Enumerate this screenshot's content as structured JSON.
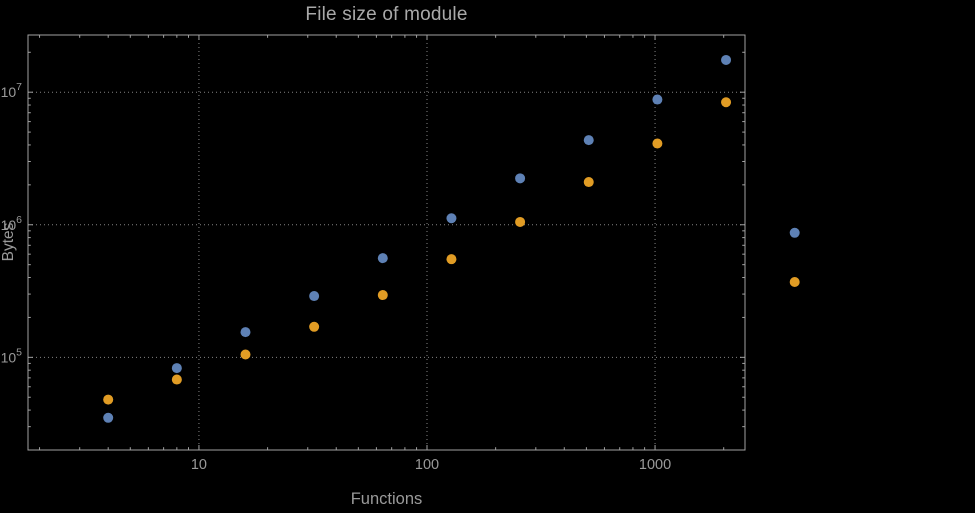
{
  "chart_data": {
    "type": "scatter",
    "title": "File size of module",
    "xlabel": "Functions",
    "ylabel": "Bytes",
    "x_scale": "log",
    "y_scale": "log",
    "xlim": [
      1.78,
      2480
    ],
    "ylim": [
      20000,
      27000000
    ],
    "grid": true,
    "legend": "none",
    "x_gridlines": [
      10,
      100,
      1000
    ],
    "y_gridlines": [
      100000,
      1000000,
      10000000
    ],
    "x_tick_labels": [
      "10",
      "100",
      "1000"
    ],
    "y_tick_base": "10",
    "y_tick_exponents": [
      "5",
      "6",
      "7"
    ],
    "x": [
      4,
      8,
      16,
      32,
      64,
      128,
      256,
      512,
      1024,
      2048,
      4096
    ],
    "series": [
      {
        "name": "series-1-blue",
        "color": "#5e81b5",
        "values": [
          35000,
          83000,
          155000,
          290000,
          560000,
          1120000,
          2240000,
          4350000,
          8800000,
          17500000,
          870000
        ]
      },
      {
        "name": "series-2-orange",
        "color": "#e19c24",
        "values": [
          48000,
          68000,
          105000,
          170000,
          295000,
          550000,
          1050000,
          2100000,
          4100000,
          8400000,
          370000
        ]
      }
    ],
    "colors": {
      "background": "#000000",
      "frame": "#a2a2a2",
      "grid": "#848484",
      "text": "#9a9a9a",
      "marker_size": 5
    }
  }
}
